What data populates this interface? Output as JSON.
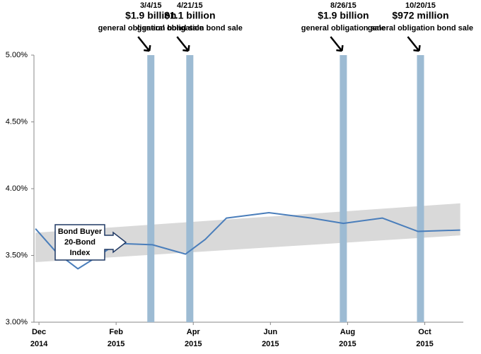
{
  "chart_data": {
    "type": "line",
    "x": [
      -0.09,
      0.46,
      1.01,
      1.56,
      2.02,
      2.94,
      3.8,
      4.31,
      4.86,
      5.96,
      7.06,
      7.89,
      8.9,
      9.82,
      10.92
    ],
    "series": [
      {
        "name": "Bond Buyer 20-Bond Index",
        "color": "#4a7ebb",
        "values": [
          3.7,
          3.52,
          3.4,
          3.5,
          3.59,
          3.58,
          3.51,
          3.62,
          3.78,
          3.82,
          3.78,
          3.74,
          3.78,
          3.68,
          3.69
        ]
      }
    ],
    "callout": [
      "Bond Buyer",
      "20-Bond",
      "Index"
    ],
    "band": {
      "x": [
        -0.09,
        10.92
      ],
      "lower": [
        3.45,
        3.65
      ],
      "upper": [
        3.67,
        3.89
      ],
      "color": "#d9d9d9"
    },
    "events": [
      {
        "x": 2.9,
        "date": "3/4/15",
        "amount": "$1.9 billion",
        "description": "general obligation bond sale"
      },
      {
        "x": 3.91,
        "date": "4/21/15",
        "amount": "$1.1 billion",
        "description": "general obligation bond sale"
      },
      {
        "x": 7.89,
        "date": "8/26/15",
        "amount": "$1.9 billion",
        "description": "general obligation sale"
      },
      {
        "x": 9.89,
        "date": "10/20/15",
        "amount": "$972 million",
        "description": "general obligation bond sale"
      }
    ],
    "event_color": "#9dbbd3",
    "xlim": [
      -0.13,
      11
    ],
    "xticks": [
      {
        "value": 0,
        "label": [
          "Dec",
          "2014"
        ]
      },
      {
        "value": 2,
        "label": [
          "Feb",
          "2015"
        ]
      },
      {
        "value": 4,
        "label": [
          "Apr",
          "2015"
        ]
      },
      {
        "value": 6,
        "label": [
          "Jun",
          "2015"
        ]
      },
      {
        "value": 8,
        "label": [
          "Aug",
          "2015"
        ]
      },
      {
        "value": 10,
        "label": [
          "Oct",
          "2015"
        ]
      }
    ],
    "ylim": [
      3,
      5
    ],
    "yticks": [
      {
        "value": 3,
        "label": "3.00%"
      },
      {
        "value": 3.5,
        "label": "3.50%"
      },
      {
        "value": 4,
        "label": "4.00%"
      },
      {
        "value": 4.5,
        "label": "4.50%"
      },
      {
        "value": 5,
        "label": "5.00%"
      }
    ]
  }
}
